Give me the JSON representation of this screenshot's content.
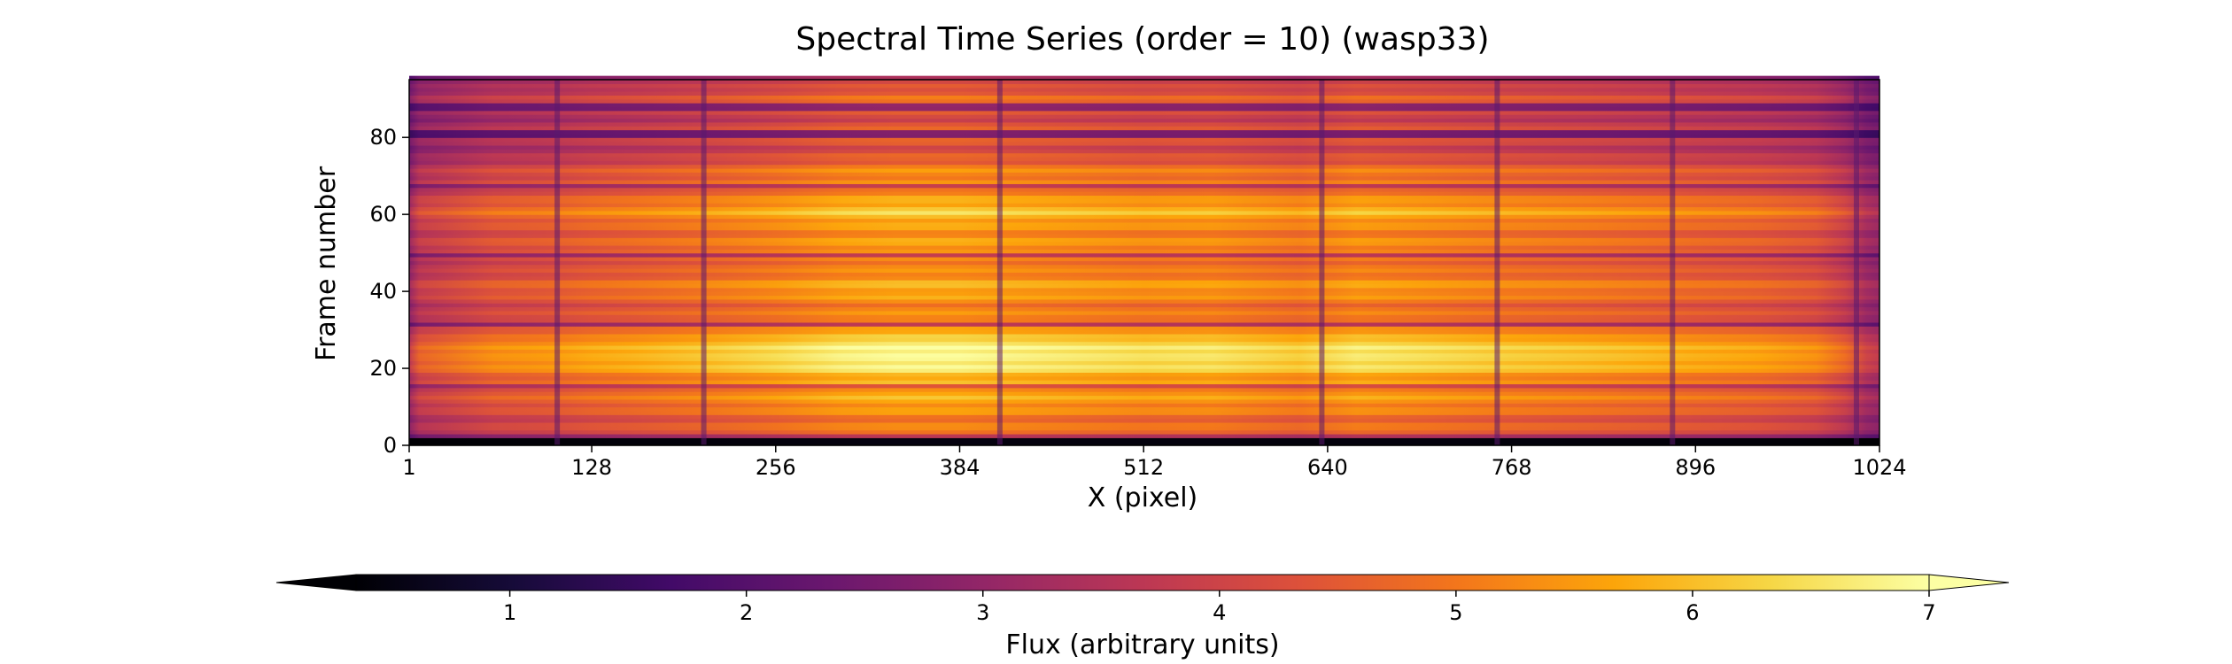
{
  "chart_data": {
    "type": "heatmap",
    "title": "Spectral Time Series (order = 10) (wasp33)",
    "xlabel": "X (pixel)",
    "ylabel": "Frame number",
    "xlim": [
      1,
      1024
    ],
    "ylim": [
      0,
      95
    ],
    "x_ticks": [
      1,
      128,
      256,
      384,
      512,
      640,
      768,
      896,
      1024
    ],
    "y_ticks": [
      0,
      20,
      40,
      60,
      80
    ],
    "colormap": "inferno",
    "colorbar": {
      "label": "Flux (arbitrary units)",
      "ticks": [
        1,
        2,
        3,
        4,
        5,
        6,
        7
      ],
      "range": [
        0.35,
        7.0
      ],
      "extend": "both",
      "orientation": "horizontal",
      "placement": "bottom"
    },
    "profile_x": {
      "x": [
        1,
        8,
        60,
        100,
        128,
        160,
        200,
        256,
        300,
        340,
        384,
        420,
        512,
        560,
        620,
        660,
        700,
        768,
        820,
        860,
        896,
        940,
        980,
        1000,
        1015,
        1024
      ],
      "relative_flux": [
        0.55,
        0.68,
        0.78,
        0.8,
        0.83,
        0.85,
        0.88,
        0.93,
        0.98,
        1.0,
        1.0,
        0.98,
        0.94,
        0.95,
        0.9,
        0.96,
        0.94,
        0.9,
        0.88,
        0.86,
        0.84,
        0.82,
        0.78,
        0.7,
        0.58,
        0.55
      ]
    },
    "absorption_lines_x": [
      104,
      206,
      412,
      636,
      758,
      880,
      1008
    ],
    "bright_frames": [
      20,
      21,
      22,
      23,
      24,
      25,
      26,
      27,
      28,
      29
    ],
    "dark_frames": [
      0,
      1,
      2,
      15,
      31,
      49,
      67,
      80,
      81,
      87,
      88
    ],
    "flux_level_by_frame": {
      "frames": [
        0,
        3,
        10,
        20,
        25,
        30,
        40,
        50,
        60,
        70,
        80,
        90,
        95
      ],
      "peak_flux": [
        0.6,
        5.2,
        5.4,
        6.4,
        6.6,
        5.2,
        5.6,
        5.3,
        6.0,
        5.1,
        4.2,
        4.6,
        4.0
      ]
    }
  }
}
